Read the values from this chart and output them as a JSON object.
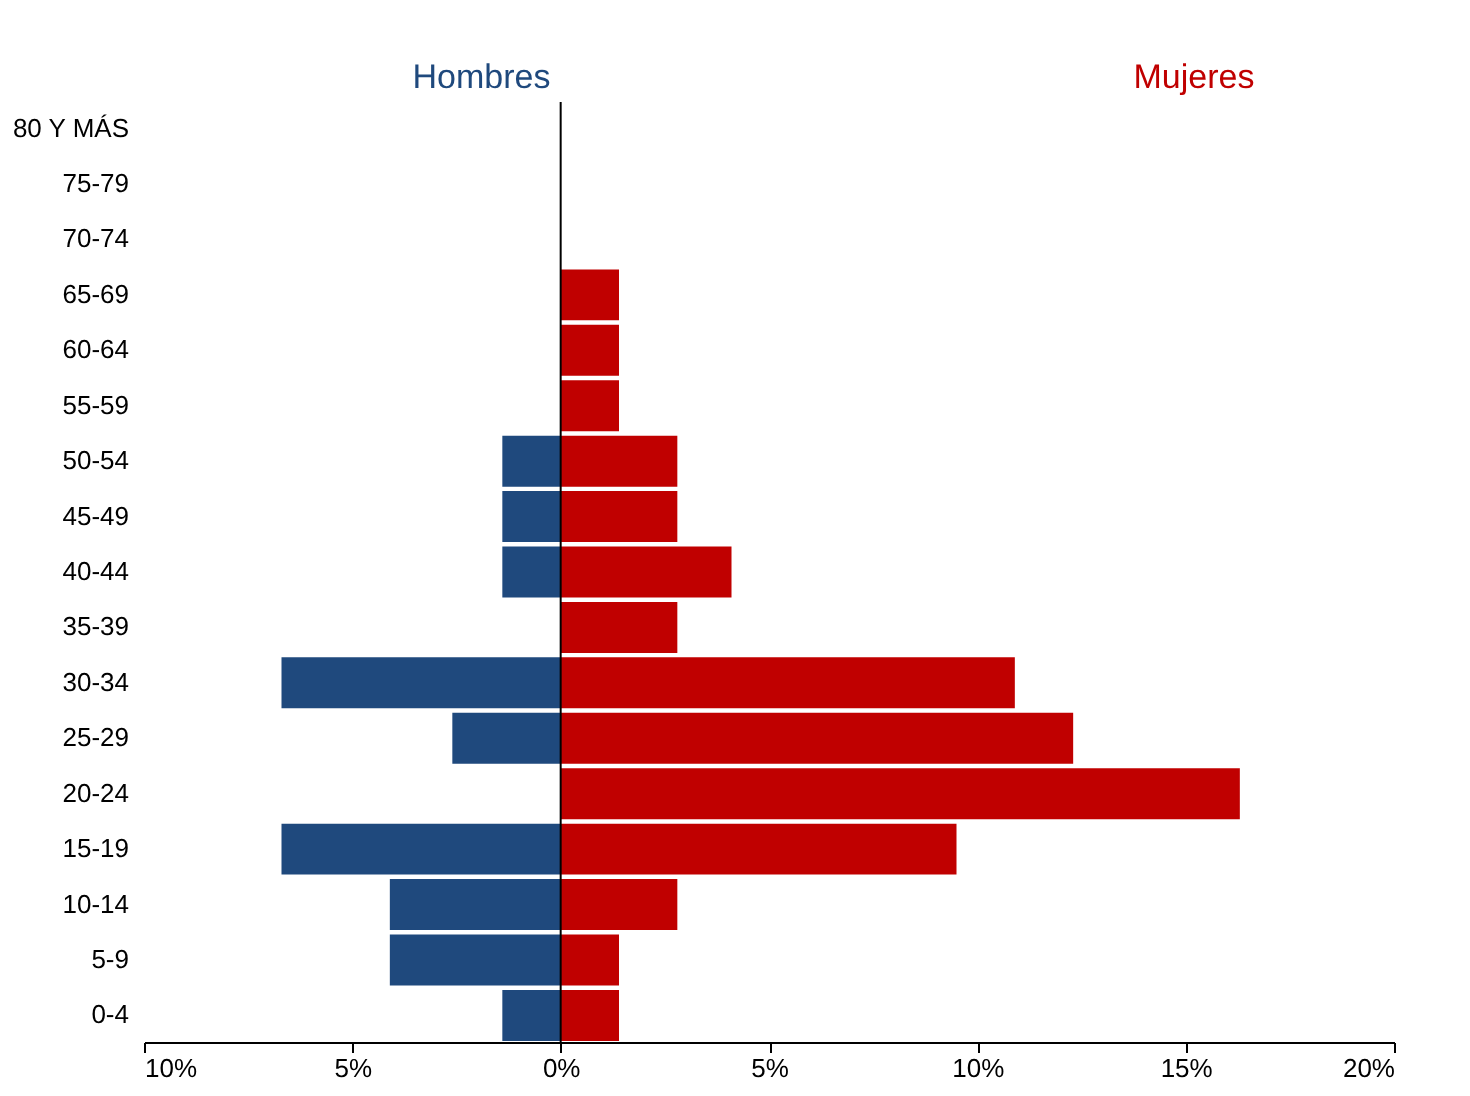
{
  "chart_data": {
    "type": "bar",
    "orientation": "horizontal",
    "stacked": true,
    "categories": [
      "80 Y MÁS",
      "75-79",
      "70-74",
      "65-69",
      "60-64",
      "55-59",
      "50-54",
      "45-49",
      "40-44",
      "35-39",
      "30-34",
      "25-29",
      "20-24",
      "15-19",
      "10-14",
      "5-9",
      "0-4"
    ],
    "series": [
      {
        "name": "Hombres",
        "color": "#1f497d",
        "values": [
          0,
          0,
          0,
          0,
          0,
          0,
          -1.4,
          -1.4,
          -1.4,
          0,
          -6.7,
          -2.6,
          0,
          -6.7,
          -4.1,
          -4.1,
          -1.4
        ]
      },
      {
        "name": "Mujeres",
        "color": "#c00000",
        "values": [
          0,
          0,
          0,
          1.4,
          1.4,
          1.4,
          2.8,
          2.8,
          4.1,
          2.8,
          10.9,
          12.3,
          16.3,
          9.5,
          2.8,
          1.4,
          1.4
        ]
      }
    ],
    "xlim": [
      -10,
      20
    ],
    "xticks": [
      {
        "value": -10,
        "label": "10%"
      },
      {
        "value": -5,
        "label": "5%"
      },
      {
        "value": 0,
        "label": "0%"
      },
      {
        "value": 5,
        "label": "5%"
      },
      {
        "value": 10,
        "label": "10%"
      },
      {
        "value": 15,
        "label": "15%"
      },
      {
        "value": 20,
        "label": "20%"
      }
    ],
    "ref_lines": [
      {
        "axis": "x",
        "value": 0,
        "color": "#000000"
      }
    ],
    "grid": false,
    "legend": false
  }
}
